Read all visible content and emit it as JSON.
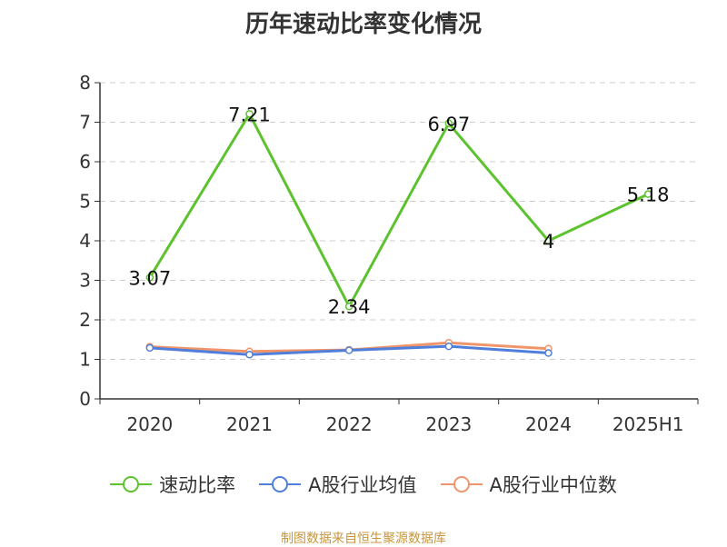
{
  "chart_data": {
    "type": "line",
    "title": "历年速动比率变化情况",
    "categories": [
      "2020",
      "2021",
      "2022",
      "2023",
      "2024",
      "2025H1"
    ],
    "ylim": [
      0,
      8
    ],
    "yticks": [
      0,
      1,
      2,
      3,
      4,
      5,
      6,
      7,
      8
    ],
    "grid": true,
    "legend_position": "bottom",
    "series": [
      {
        "name": "速动比率",
        "color": "#5cc22e",
        "values": [
          3.07,
          7.21,
          2.34,
          6.97,
          4,
          5.18
        ],
        "labels": [
          "3.07",
          "7.21",
          "2.34",
          "6.97",
          "4",
          "5.18"
        ]
      },
      {
        "name": "A股行业均值",
        "color": "#4f7fdb",
        "values": [
          1.29,
          1.12,
          1.23,
          1.33,
          1.16,
          null
        ]
      },
      {
        "name": "A股行业中位数",
        "color": "#f0956b",
        "values": [
          1.32,
          1.2,
          1.24,
          1.42,
          1.27,
          null
        ]
      }
    ]
  },
  "source": "制图数据来自恒生聚源数据库"
}
